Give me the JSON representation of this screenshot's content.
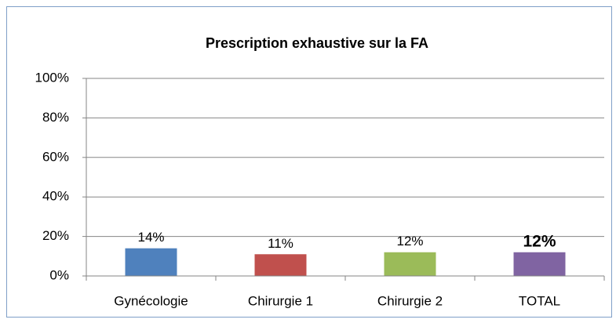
{
  "chart_data": {
    "type": "bar",
    "title": "Prescription exhaustive sur la FA",
    "categories": [
      "Gynécologie",
      "Chirurgie 1",
      "Chirurgie 2",
      "TOTAL"
    ],
    "values": [
      14,
      11,
      12,
      12
    ],
    "value_labels": [
      "14%",
      "11%",
      "12%",
      "12%"
    ],
    "value_label_bold": [
      false,
      false,
      false,
      true
    ],
    "colors": [
      "#4f81bd",
      "#c0504d",
      "#9bbb59",
      "#8064a2"
    ],
    "ylim": [
      0,
      100
    ],
    "yticks": [
      {
        "value": 0,
        "label": "0%"
      },
      {
        "value": 20,
        "label": "20%"
      },
      {
        "value": 40,
        "label": "40%"
      },
      {
        "value": 60,
        "label": "60%"
      },
      {
        "value": 80,
        "label": "80%"
      },
      {
        "value": 100,
        "label": "100%"
      }
    ],
    "grid": true
  }
}
